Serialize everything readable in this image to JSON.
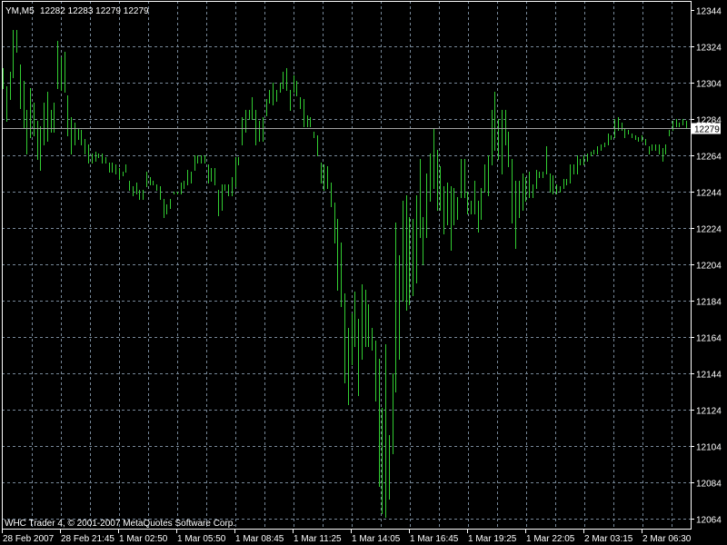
{
  "header": {
    "symbol": "YM,M5",
    "ohlc": "12282 12283 12279 12279"
  },
  "footer": {
    "copyright": "WHC Trader 4, © 2001-2007 MetaQuotes Software Corp."
  },
  "colors": {
    "background": "#000000",
    "bars": "#32CD32",
    "grid": "#778899",
    "axis": "#FFFFFF",
    "price_line": "#A0A0A0",
    "price_label_bg": "#FFFFFF",
    "price_label_text": "#000000"
  },
  "chart_data": {
    "type": "bar",
    "subtype": "ohlc-high-low",
    "grid": true,
    "ylim": [
      12064,
      12344
    ],
    "y_ticks": [
      "12344",
      "12324",
      "12304",
      "12284",
      "12264",
      "12244",
      "12224",
      "12204",
      "12184",
      "12164",
      "12144",
      "12124",
      "12104",
      "12084",
      "12064"
    ],
    "x_ticks": [
      "28 Feb 2007",
      "28 Feb 21:45",
      "1 Mar 02:50",
      "1 Mar 05:50",
      "1 Mar 08:45",
      "1 Mar 11:25",
      "1 Mar 14:05",
      "1 Mar 16:45",
      "1 Mar 19:25",
      "1 Mar 22:05",
      "2 Mar 03:15",
      "2 Mar 06:30"
    ],
    "current_price": 12279,
    "current_price_label": "12279",
    "bars_high_low": [
      [
        12312,
        12301
      ],
      [
        12302,
        12283
      ],
      [
        12310,
        12295
      ],
      [
        12333,
        12307
      ],
      [
        12333,
        12321
      ],
      [
        12314,
        12290
      ],
      [
        12305,
        12279
      ],
      [
        12289,
        12265
      ],
      [
        12301,
        12274
      ],
      [
        12293,
        12275
      ],
      [
        12283,
        12262
      ],
      [
        12280,
        12256
      ],
      [
        12293,
        12270
      ],
      [
        12299,
        12272
      ],
      [
        12289,
        12277
      ],
      [
        12293,
        12277
      ],
      [
        12327,
        12301
      ],
      [
        12318,
        12300
      ],
      [
        12321,
        12299
      ],
      [
        12297,
        12275
      ],
      [
        12285,
        12265
      ],
      [
        12282,
        12270
      ],
      [
        12279,
        12273
      ],
      [
        12278,
        12270
      ],
      [
        12273,
        12265
      ],
      [
        12270,
        12260
      ],
      [
        12265,
        12260
      ],
      [
        12266,
        12261
      ],
      [
        12265,
        12263
      ],
      [
        12265,
        12260
      ],
      [
        12263,
        12260
      ],
      [
        12260,
        12255
      ],
      [
        12260,
        12255
      ],
      [
        12259,
        12254
      ],
      [
        12257,
        12251
      ],
      [
        12255,
        12253
      ],
      [
        12259,
        12255
      ],
      [
        12250,
        12245
      ],
      [
        12247,
        12242
      ],
      [
        12249,
        12243
      ],
      [
        12245,
        12240
      ],
      [
        12245,
        12240
      ],
      [
        12255,
        12247
      ],
      [
        12252,
        12248
      ],
      [
        12250,
        12248
      ],
      [
        12248,
        12245
      ],
      [
        12247,
        12240
      ],
      [
        12240,
        12230
      ],
      [
        12237,
        12232
      ],
      [
        12240,
        12235
      ],
      [
        12244,
        12243
      ],
      [
        12244,
        12243
      ],
      [
        12249,
        12243
      ],
      [
        12250,
        12246
      ],
      [
        12256,
        12248
      ],
      [
        12255,
        12249
      ],
      [
        12264,
        12256
      ],
      [
        12264,
        12260
      ],
      [
        12264,
        12260
      ],
      [
        12264,
        12260
      ],
      [
        12259,
        12249
      ],
      [
        12257,
        12250
      ],
      [
        12257,
        12248
      ],
      [
        12245,
        12231
      ],
      [
        12248,
        12234
      ],
      [
        12248,
        12245
      ],
      [
        12248,
        12242
      ],
      [
        12252,
        12242
      ],
      [
        12263,
        12247
      ],
      [
        12263,
        12259
      ],
      [
        12285,
        12270
      ],
      [
        12289,
        12277
      ],
      [
        12289,
        12284
      ],
      [
        12296,
        12284
      ],
      [
        12289,
        12270
      ],
      [
        12283,
        12272
      ],
      [
        12285,
        12272
      ],
      [
        12295,
        12286
      ],
      [
        12300,
        12293
      ],
      [
        12304,
        12292
      ],
      [
        12300,
        12294
      ],
      [
        12304,
        12299
      ],
      [
        12310,
        12301
      ],
      [
        12312,
        12300
      ],
      [
        12300,
        12289
      ],
      [
        12308,
        12299
      ],
      [
        12305,
        12297
      ],
      [
        12296,
        12290
      ],
      [
        12295,
        12280
      ],
      [
        12286,
        12280
      ],
      [
        12285,
        12280
      ],
      [
        12277,
        12274
      ],
      [
        12275,
        12264
      ],
      [
        12260,
        12249
      ],
      [
        12259,
        12245
      ],
      [
        12258,
        12246
      ],
      [
        12249,
        12236
      ],
      [
        12238,
        12216
      ],
      [
        12229,
        12190
      ],
      [
        12216,
        12181
      ],
      [
        12188,
        12139
      ],
      [
        12169,
        12127
      ],
      [
        12177,
        12149
      ],
      [
        12189,
        12159
      ],
      [
        12174,
        12132
      ],
      [
        12193,
        12152
      ],
      [
        12190,
        12159
      ],
      [
        12182,
        12159
      ],
      [
        12169,
        12157
      ],
      [
        12162,
        12129
      ],
      [
        12152,
        12082
      ],
      [
        12125,
        12067
      ],
      [
        12160,
        12065
      ],
      [
        12110,
        12075
      ],
      [
        12144,
        12100
      ],
      [
        12227,
        12134
      ],
      [
        12209,
        12152
      ],
      [
        12239,
        12184
      ],
      [
        12242,
        12179
      ],
      [
        12230,
        12182
      ],
      [
        12229,
        12187
      ],
      [
        12242,
        12194
      ],
      [
        12262,
        12219
      ],
      [
        12230,
        12204
      ],
      [
        12254,
        12219
      ],
      [
        12265,
        12239
      ],
      [
        12279,
        12246
      ],
      [
        12267,
        12234
      ],
      [
        12258,
        12234
      ],
      [
        12247,
        12221
      ],
      [
        12249,
        12226
      ],
      [
        12247,
        12212
      ],
      [
        12246,
        12226
      ],
      [
        12241,
        12229
      ],
      [
        12262,
        12241
      ],
      [
        12262,
        12241
      ],
      [
        12244,
        12232
      ],
      [
        12239,
        12232
      ],
      [
        12250,
        12232
      ],
      [
        12239,
        12222
      ],
      [
        12246,
        12229
      ],
      [
        12259,
        12244
      ],
      [
        12264,
        12242
      ],
      [
        12289,
        12259
      ],
      [
        12299,
        12267
      ],
      [
        12284,
        12262
      ],
      [
        12289,
        12254
      ],
      [
        12289,
        12270
      ],
      [
        12277,
        12258
      ],
      [
        12262,
        12227
      ],
      [
        12250,
        12213
      ],
      [
        12250,
        12230
      ],
      [
        12254,
        12234
      ],
      [
        12252,
        12239
      ],
      [
        12255,
        12241
      ],
      [
        12248,
        12241
      ],
      [
        12256,
        12246
      ],
      [
        12255,
        12252
      ],
      [
        12255,
        12252
      ],
      [
        12269,
        12254
      ],
      [
        12254,
        12244
      ],
      [
        12253,
        12243
      ],
      [
        12248,
        12243
      ],
      [
        12247,
        12244
      ],
      [
        12251,
        12246
      ],
      [
        12251,
        12248
      ],
      [
        12259,
        12249
      ],
      [
        12259,
        12254
      ],
      [
        12264,
        12254
      ],
      [
        12262,
        12259
      ],
      [
        12264,
        12259
      ],
      [
        12265,
        12261
      ],
      [
        12266,
        12264
      ],
      [
        12267,
        12265
      ],
      [
        12269,
        12265
      ],
      [
        12270,
        12267
      ],
      [
        12271,
        12269
      ],
      [
        12276,
        12270
      ],
      [
        12275,
        12273
      ],
      [
        12284,
        12274
      ],
      [
        12285,
        12278
      ],
      [
        12282,
        12278
      ],
      [
        12279,
        12274
      ],
      [
        12278,
        12276
      ],
      [
        12276,
        12274
      ],
      [
        12275,
        12273
      ],
      [
        12274,
        12272
      ],
      [
        12275,
        12272
      ],
      [
        12273,
        12270
      ],
      [
        12269,
        12265
      ],
      [
        12270,
        12267
      ],
      [
        12270,
        12267
      ],
      [
        12270,
        12265
      ],
      [
        12268,
        12261
      ],
      [
        12270,
        12265
      ],
      [
        12278,
        12275
      ],
      [
        12283,
        12278
      ],
      [
        12284,
        12280
      ],
      [
        12282,
        12280
      ],
      [
        12284,
        12281
      ],
      [
        12283,
        12279
      ]
    ]
  }
}
